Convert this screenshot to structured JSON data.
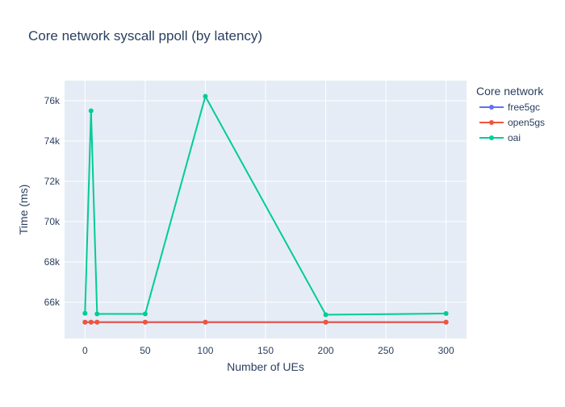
{
  "chart_data": {
    "type": "line",
    "title": "Core network syscall ppoll (by latency)",
    "xlabel": "Number of UEs",
    "ylabel": "Time (ms)",
    "xlim": [
      -17,
      317
    ],
    "ylim": [
      64200,
      77000
    ],
    "x_ticks": [
      0,
      50,
      100,
      150,
      200,
      250,
      300
    ],
    "x_tick_labels": [
      "0",
      "50",
      "100",
      "150",
      "200",
      "250",
      "300"
    ],
    "y_ticks": [
      66000,
      68000,
      70000,
      72000,
      74000,
      76000
    ],
    "y_tick_labels": [
      "66k",
      "68k",
      "70k",
      "72k",
      "74k",
      "76k"
    ],
    "grid": true,
    "legend_title": "Core network",
    "legend_position": "top-right",
    "series": [
      {
        "name": "free5gc",
        "color": "#636efa",
        "x": [
          0,
          5,
          10,
          50,
          100,
          200,
          300
        ],
        "y": [
          65010,
          65010,
          65010,
          65010,
          65010,
          65010,
          65010
        ]
      },
      {
        "name": "open5gs",
        "color": "#ef553b",
        "x": [
          0,
          5,
          10,
          50,
          100,
          200,
          300
        ],
        "y": [
          65010,
          65010,
          65010,
          65010,
          65010,
          65010,
          65010
        ]
      },
      {
        "name": "oai",
        "color": "#00cc96",
        "x": [
          0,
          5,
          10,
          50,
          100,
          200,
          300
        ],
        "y": [
          65450,
          75500,
          65420,
          65420,
          76220,
          65380,
          65440
        ]
      }
    ]
  }
}
